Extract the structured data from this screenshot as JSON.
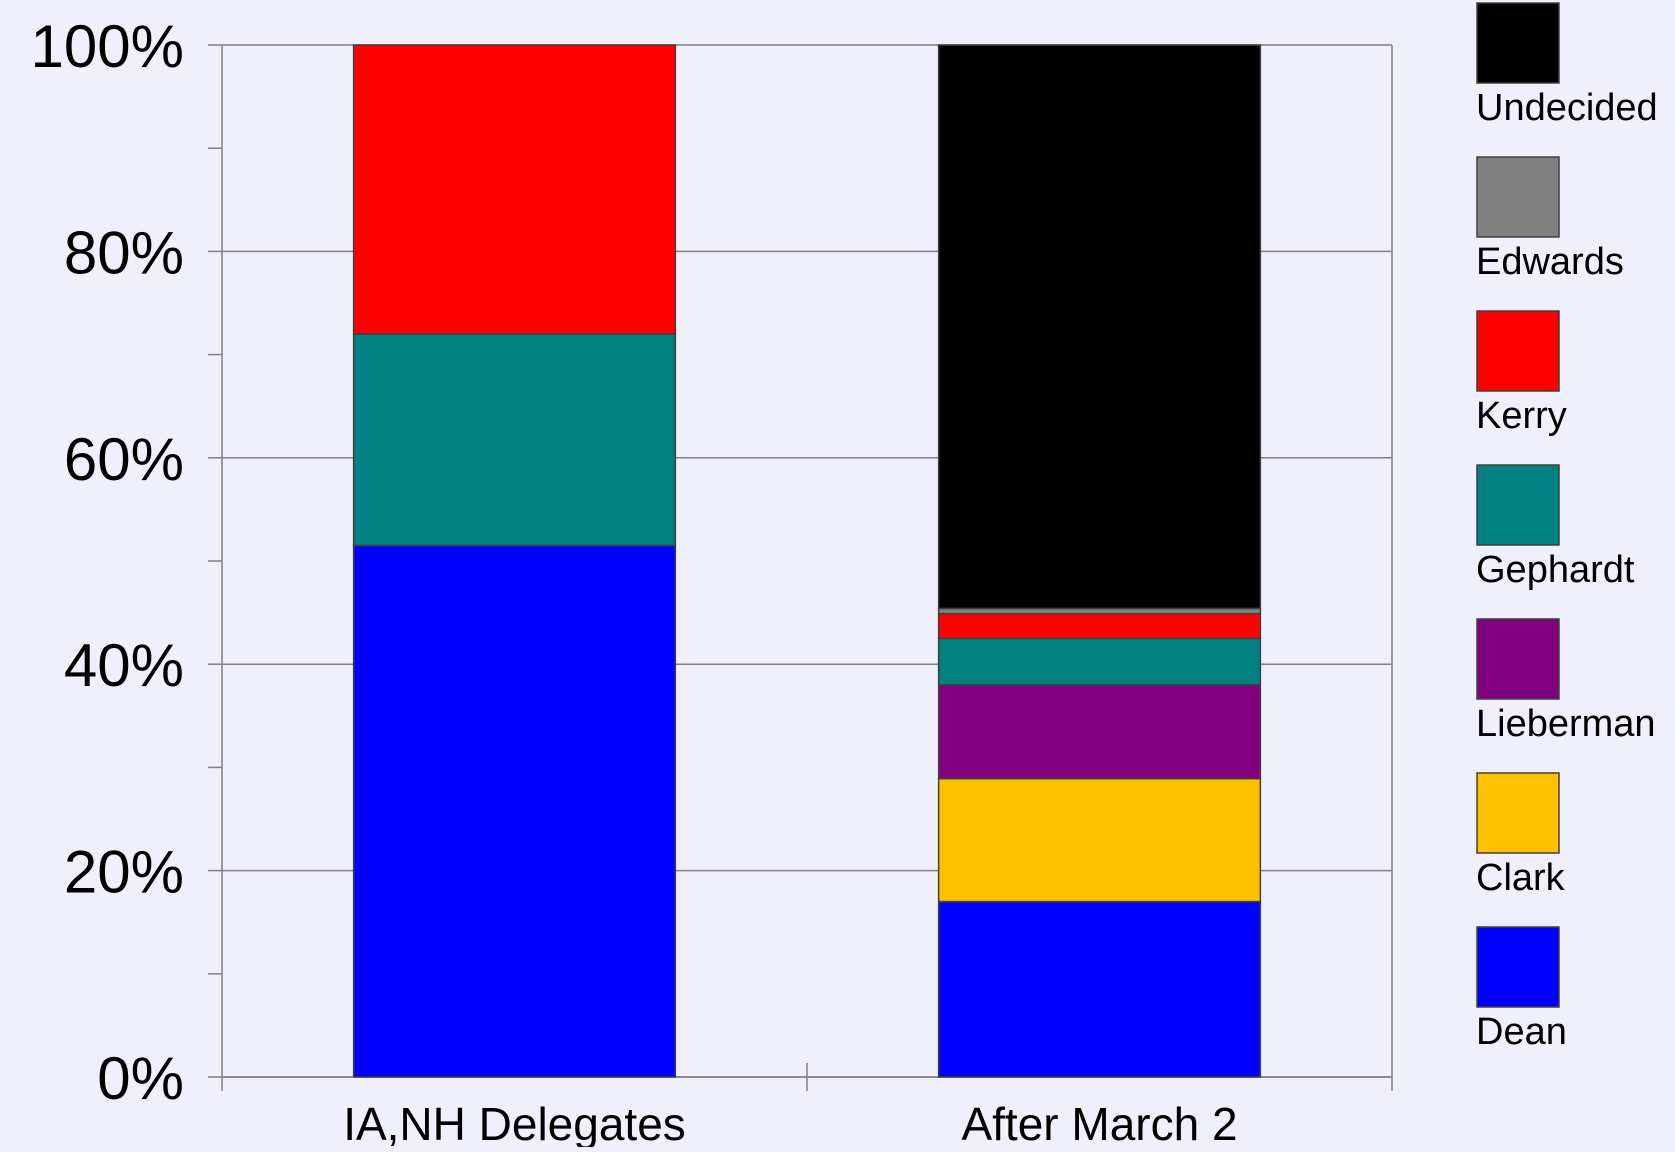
{
  "chart_data": {
    "type": "bar",
    "stacked": true,
    "normalized_percent": true,
    "categories": [
      "IA,NH Delegates",
      "After March 2"
    ],
    "series": [
      {
        "name": "Dean",
        "color": "#0000ff",
        "values": [
          51.5,
          17.0
        ]
      },
      {
        "name": "Clark",
        "color": "#ffc000",
        "values": [
          0,
          11.9
        ]
      },
      {
        "name": "Lieberman",
        "color": "#800080",
        "values": [
          0,
          9.1
        ]
      },
      {
        "name": "Gephardt",
        "color": "#008080",
        "values": [
          20.5,
          4.5
        ]
      },
      {
        "name": "Kerry",
        "color": "#ff0000",
        "values": [
          28.0,
          2.4
        ]
      },
      {
        "name": "Edwards",
        "color": "#808080",
        "values": [
          0,
          0.5
        ]
      },
      {
        "name": "Undecided",
        "color": "#000000",
        "values": [
          0,
          54.6
        ]
      }
    ],
    "ylim": [
      0,
      100
    ],
    "yticks": [
      "0%",
      "20%",
      "40%",
      "60%",
      "80%",
      "100%"
    ],
    "title": "",
    "xlabel": "",
    "ylabel": "",
    "grid": true,
    "legend": "right"
  }
}
